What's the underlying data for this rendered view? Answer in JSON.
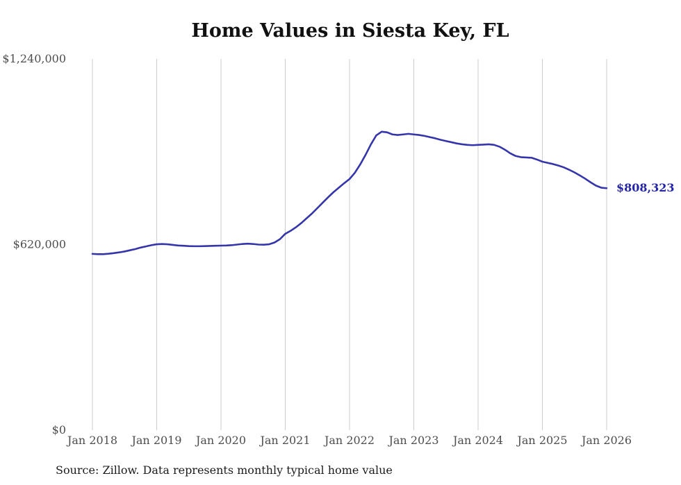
{
  "chart_data": {
    "type": "line",
    "title": "Home Values in Siesta Key, FL",
    "source_note": "Source: Zillow. Data represents monthly typical home value",
    "end_value_label": "$808,323",
    "end_value": 808323,
    "frequency": "monthly",
    "x_range": [
      "Jan 2018",
      "Jan 2026"
    ],
    "x_tick_labels": [
      "Jan 2018",
      "Jan 2019",
      "Jan 2020",
      "Jan 2021",
      "Jan 2022",
      "Jan 2023",
      "Jan 2024",
      "Jan 2025",
      "Jan 2026"
    ],
    "y_ticks": [
      {
        "value": 0,
        "label": "$0"
      },
      {
        "value": 620000,
        "label": "$620,000"
      },
      {
        "value": 1240000,
        "label": "$1,240,000"
      }
    ],
    "ylim": [
      0,
      1240000
    ],
    "grid": "vertical-only",
    "legend": "none",
    "series": [
      {
        "name": "Typical home value",
        "values": [
          589000,
          588000,
          588000,
          589500,
          591500,
          594000,
          597000,
          601000,
          605000,
          610000,
          614000,
          618000,
          621000,
          622000,
          621000,
          619000,
          617000,
          616000,
          615000,
          614500,
          614500,
          615000,
          615500,
          616000,
          616500,
          617000,
          618000,
          620000,
          622000,
          623000,
          622000,
          620000,
          619500,
          621000,
          627000,
          638000,
          656000,
          666000,
          678000,
          692000,
          708000,
          724000,
          742000,
          760000,
          778000,
          795000,
          810000,
          825000,
          839000,
          860000,
          888000,
          920000,
          955000,
          985000,
          997000,
          995000,
          988000,
          986000,
          988000,
          990000,
          988000,
          986000,
          983000,
          979000,
          975000,
          970000,
          966000,
          962000,
          958000,
          955000,
          953000,
          952000,
          953000,
          954000,
          955000,
          953000,
          947000,
          937000,
          925000,
          916000,
          912000,
          911000,
          910000,
          904000,
          897000,
          893000,
          889000,
          884000,
          878000,
          870000,
          861000,
          851000,
          840000,
          828000,
          817000,
          810000,
          808323
        ]
      }
    ]
  },
  "colors": {
    "line": "#3535ab",
    "end_label": "#2424a8",
    "grid": "#cccccc",
    "tick_label": "#4d4d4d",
    "title": "#111111",
    "source": "#1b1b1b"
  }
}
